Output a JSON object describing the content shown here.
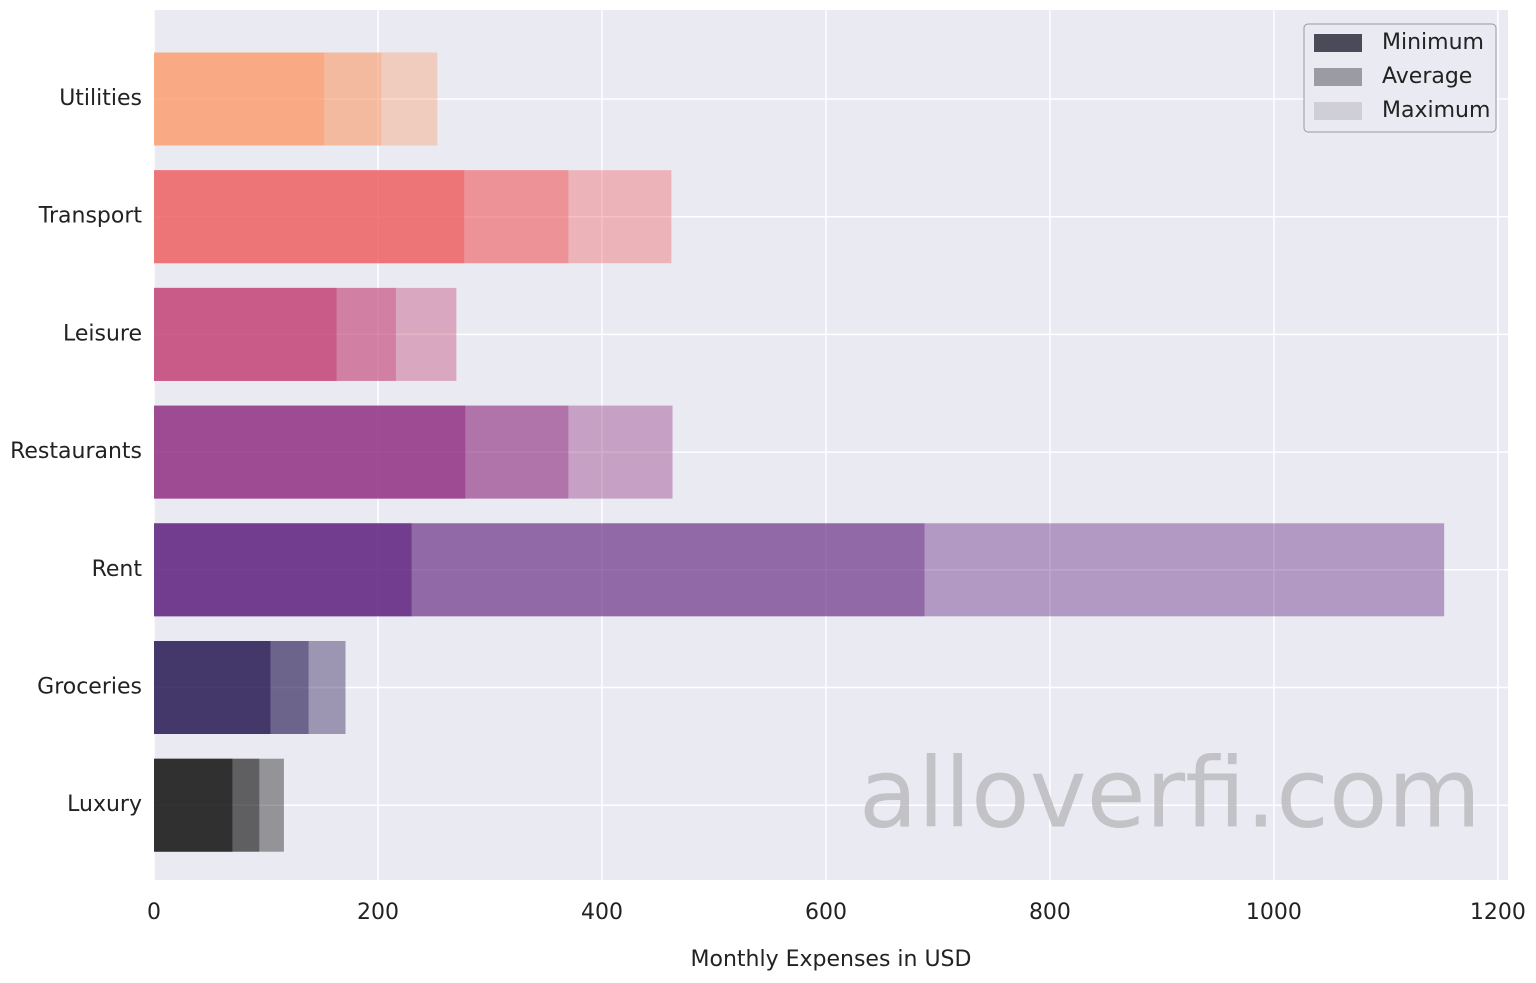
{
  "chart_data": {
    "type": "overlapping-barh",
    "x_label": "Monthly Expenses in USD",
    "watermark": "alloverfi.com",
    "categories": [
      "Utilities",
      "Transport",
      "Leisure",
      "Restaurants",
      "Rent",
      "Groceries",
      "Luxury"
    ],
    "category_colors": [
      "#fba072",
      "#ef6263",
      "#c34376",
      "#913183",
      "#5f207e",
      "#291a53",
      "#111111"
    ],
    "series": [
      {
        "name": "Maximum",
        "color": "#d0cfd7",
        "alpha": 0.4,
        "values": [
          253,
          462,
          270,
          463,
          1152,
          171,
          116
        ]
      },
      {
        "name": "Average",
        "color": "#9b9ba3",
        "alpha": 0.4,
        "values": [
          203,
          370,
          216,
          370,
          688,
          138,
          94
        ]
      },
      {
        "name": "Minimum",
        "color": "#4b4a58",
        "alpha": 0.6,
        "values": [
          152,
          277,
          163,
          278,
          230,
          104,
          70
        ]
      }
    ],
    "legend_order": [
      2,
      1,
      0
    ],
    "xlim": [
      0,
      1209
    ],
    "xticks": [
      0,
      200,
      400,
      600,
      800,
      1000,
      1200
    ],
    "grid": true,
    "legend": "upper right"
  }
}
